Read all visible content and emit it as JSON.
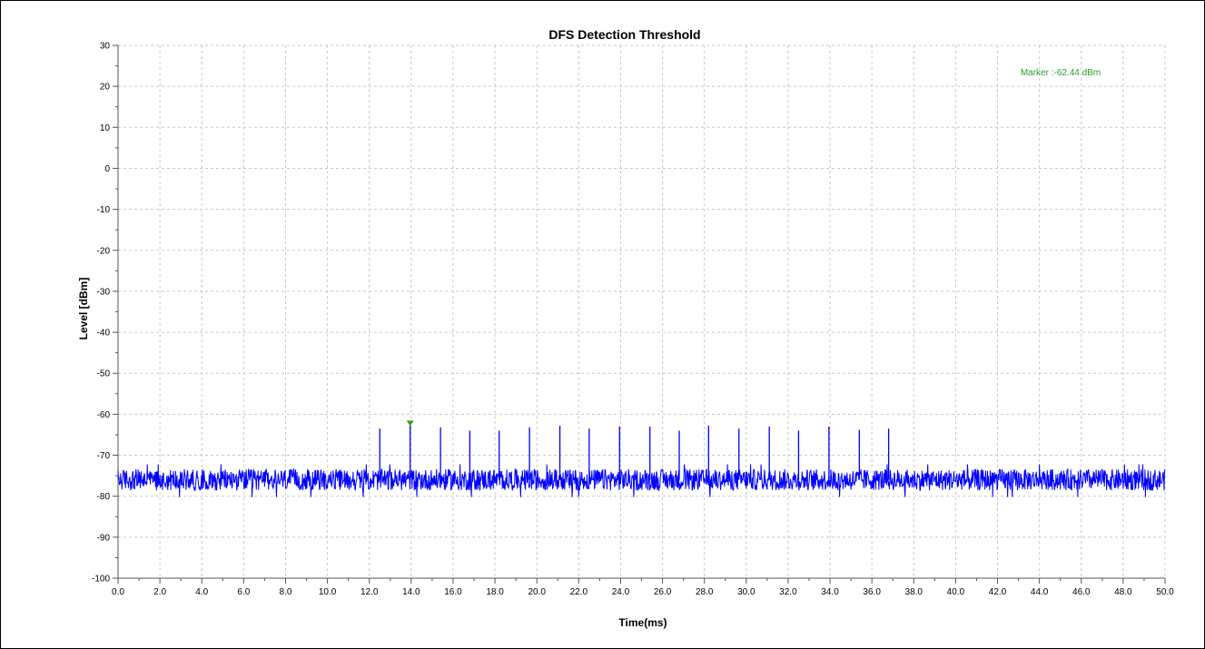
{
  "chart_data": {
    "type": "line",
    "title": "DFS Detection Threshold",
    "xlabel": "Time(ms)",
    "ylabel": "Level [dBm]",
    "xlim": [
      0,
      50
    ],
    "ylim": [
      -100,
      30
    ],
    "x_ticks": [
      "0.0",
      "2.0",
      "4.0",
      "6.0",
      "8.0",
      "10.0",
      "12.0",
      "14.0",
      "16.0",
      "18.0",
      "20.0",
      "22.0",
      "24.0",
      "26.0",
      "28.0",
      "30.0",
      "32.0",
      "34.0",
      "36.0",
      "38.0",
      "40.0",
      "42.0",
      "44.0",
      "46.0",
      "48.0",
      "50.0"
    ],
    "y_ticks": [
      "30",
      "20",
      "10",
      "0",
      "-10",
      "-20",
      "-30",
      "-40",
      "-50",
      "-60",
      "-70",
      "-80",
      "-90",
      "-100"
    ],
    "grid": true,
    "legend": "none",
    "noise_floor_dbm": -76,
    "series": [
      {
        "color": "#0000ff",
        "pulses": [
          {
            "x": 12.5,
            "y": -63.5
          },
          {
            "x": 13.95,
            "y": -62.44
          },
          {
            "x": 15.4,
            "y": -63.2
          },
          {
            "x": 16.8,
            "y": -64.0
          },
          {
            "x": 18.2,
            "y": -64.0
          },
          {
            "x": 19.65,
            "y": -63.2
          },
          {
            "x": 21.1,
            "y": -62.8
          },
          {
            "x": 22.5,
            "y": -63.5
          },
          {
            "x": 23.95,
            "y": -63.0
          },
          {
            "x": 25.4,
            "y": -63.0
          },
          {
            "x": 26.8,
            "y": -64.0
          },
          {
            "x": 28.2,
            "y": -62.8
          },
          {
            "x": 29.65,
            "y": -63.5
          },
          {
            "x": 31.1,
            "y": -63.0
          },
          {
            "x": 32.5,
            "y": -64.0
          },
          {
            "x": 33.95,
            "y": -63.0
          },
          {
            "x": 35.4,
            "y": -63.8
          },
          {
            "x": 36.8,
            "y": -63.5
          }
        ]
      }
    ],
    "marker": {
      "x": 13.95,
      "y": -62.44,
      "label": "Marker :-62.44 dBm",
      "color": "#2a9d2a"
    }
  }
}
